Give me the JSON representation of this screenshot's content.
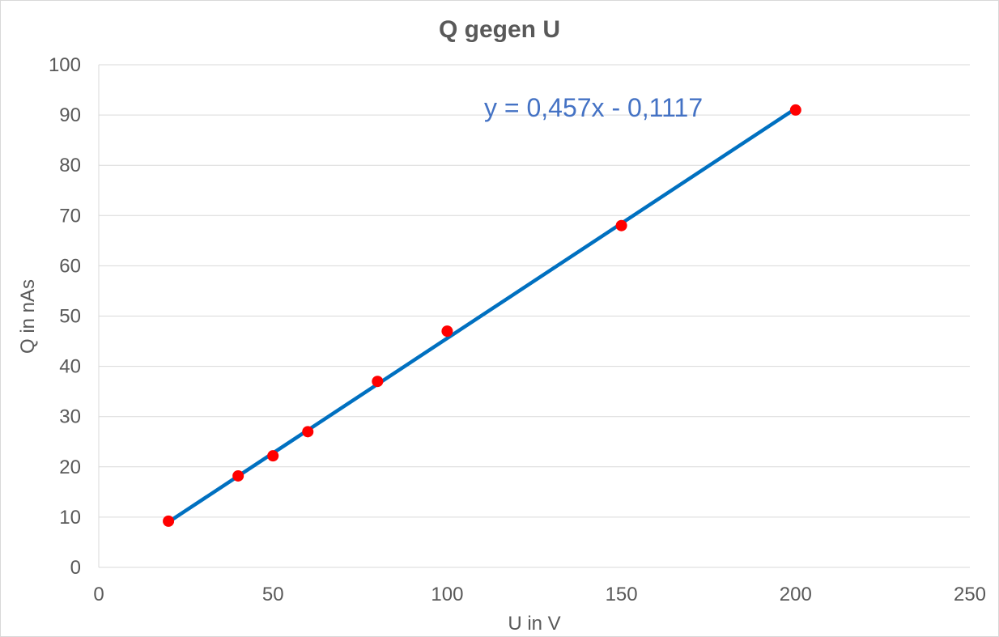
{
  "chart_data": {
    "type": "scatter",
    "title": "Q gegen U",
    "xlabel": "U in V",
    "ylabel": "Q in nAs",
    "xlim": [
      0,
      250
    ],
    "ylim": [
      0,
      100
    ],
    "x_ticks": [
      0,
      50,
      100,
      150,
      200,
      250
    ],
    "y_ticks": [
      0,
      10,
      20,
      30,
      40,
      50,
      60,
      70,
      80,
      90,
      100
    ],
    "grid": {
      "horizontal": true,
      "vertical": false
    },
    "legend": "none",
    "series": [
      {
        "x": [
          20,
          40,
          50,
          60,
          80,
          100,
          150,
          200
        ],
        "y": [
          9.2,
          18.2,
          22.2,
          27.0,
          37.0,
          47.0,
          68.0,
          91.0
        ],
        "marker_color": "#ff0000"
      }
    ],
    "trendline": {
      "type": "linear",
      "slope": 0.457,
      "intercept": -0.1117,
      "x_range": [
        20,
        200
      ],
      "color": "#0070c0",
      "equation_label": "y = 0,457x - 0,1117"
    }
  }
}
